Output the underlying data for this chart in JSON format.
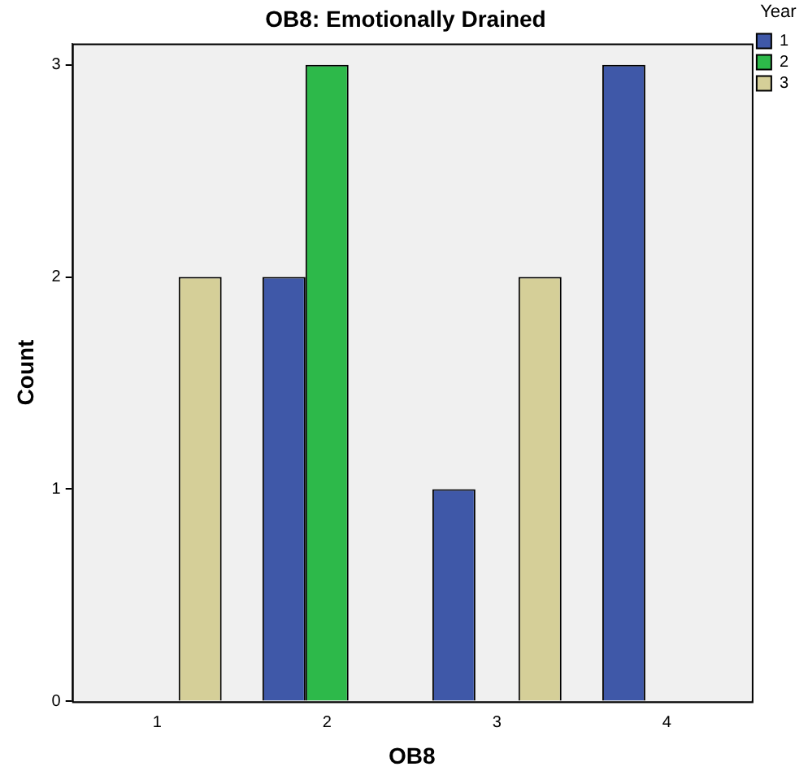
{
  "chart_data": {
    "type": "bar",
    "title": "OB8: Emotionally Drained",
    "xlabel": "OB8",
    "ylabel": "Count",
    "legend_title": "Year",
    "categories": [
      "1",
      "2",
      "3",
      "4"
    ],
    "series": [
      {
        "name": "1",
        "color": "#3f58a8",
        "values": [
          null,
          2,
          1,
          3
        ]
      },
      {
        "name": "2",
        "color": "#2db94a",
        "values": [
          null,
          3,
          null,
          null
        ]
      },
      {
        "name": "3",
        "color": "#d5cf98",
        "values": [
          2,
          null,
          2,
          null
        ]
      }
    ],
    "ylim": [
      0,
      3.1
    ],
    "yticks": [
      0,
      1,
      2,
      3
    ],
    "grid": false,
    "legend": "top right"
  }
}
